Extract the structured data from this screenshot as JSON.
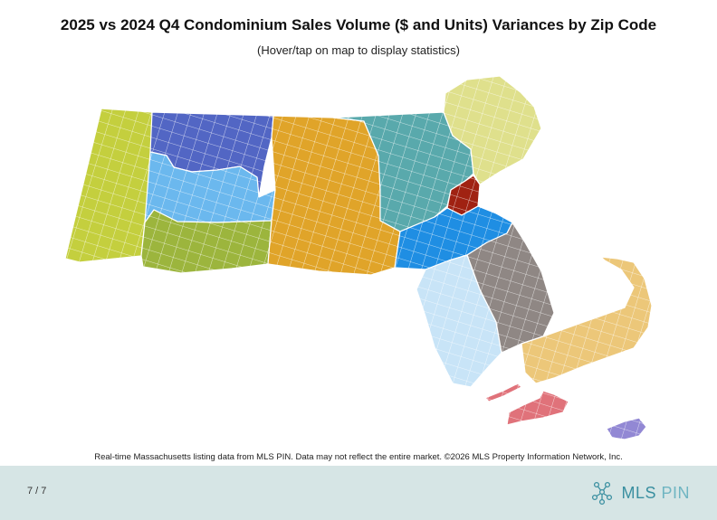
{
  "header": {
    "title": "2025 vs 2024 Q4 Condominium Sales Volume ($ and Units) Variances by Zip Code",
    "subtitle": "(Hover/tap on map to display statistics)"
  },
  "map": {
    "regions": [
      {
        "key": "berkshire",
        "color": "#c4cf3e"
      },
      {
        "key": "franklin",
        "color": "#5266c4"
      },
      {
        "key": "hampshire",
        "color": "#6bb8ee"
      },
      {
        "key": "hampden",
        "color": "#9cb53d"
      },
      {
        "key": "worcester",
        "color": "#e0a429"
      },
      {
        "key": "middlesex",
        "color": "#59a9ac"
      },
      {
        "key": "essex",
        "color": "#dfe08c"
      },
      {
        "key": "suffolk",
        "color": "#a02212"
      },
      {
        "key": "norfolk",
        "color": "#1f8ee3"
      },
      {
        "key": "bristol",
        "color": "#c8e4f7"
      },
      {
        "key": "plymouth",
        "color": "#8f8784"
      },
      {
        "key": "barnstable",
        "color": "#ecc779"
      },
      {
        "key": "dukes",
        "color": "#e0727a"
      },
      {
        "key": "nantucket",
        "color": "#9288d4"
      }
    ]
  },
  "footer": {
    "note": "Real-time Massachusetts listing data from MLS PIN. Data may not reflect the entire market. ©2026 MLS Property Information Network, Inc.",
    "page": "7 / 7",
    "logo_text_main": "MLS",
    "logo_text_accent": "PIN"
  }
}
